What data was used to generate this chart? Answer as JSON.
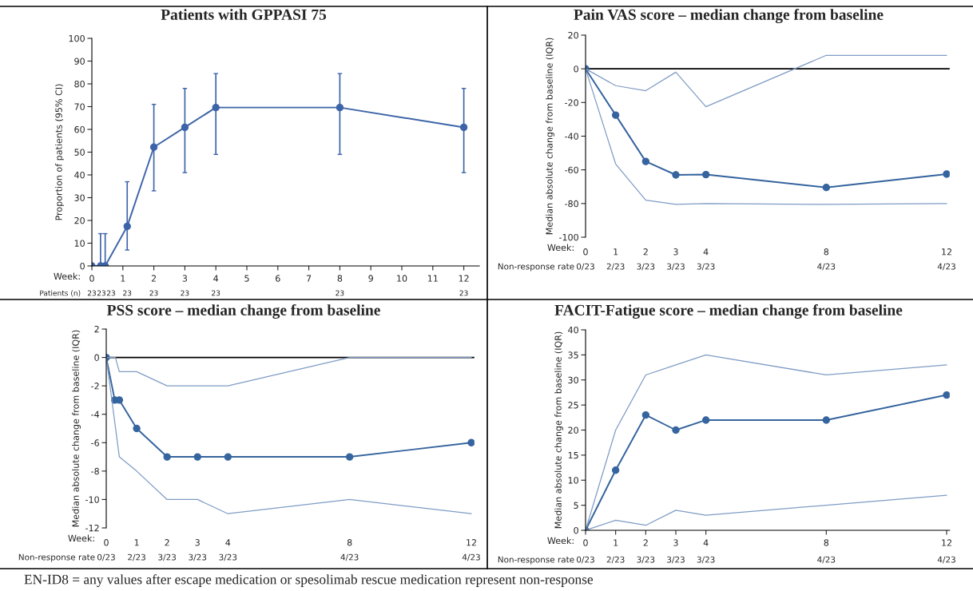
{
  "chart_data": [
    {
      "type": "line",
      "title": "Patients with GPPASI 75",
      "xlabel": "Week:",
      "ylabel": "Proportion of patients (95% CI)",
      "xlim": [
        0,
        12.5
      ],
      "xticks": [
        0,
        1,
        2,
        3,
        4,
        5,
        6,
        7,
        8,
        9,
        10,
        11,
        12
      ],
      "ylim": [
        0,
        100
      ],
      "yticks": [
        0,
        10,
        20,
        30,
        40,
        50,
        60,
        70,
        80,
        90,
        100
      ],
      "annotations": [
        "Patients (n)",
        "23",
        "23",
        "23",
        "23",
        "23",
        "23",
        "23",
        "23",
        "23"
      ],
      "series": [
        {
          "color": "#3d64a8",
          "marker": "circle",
          "x": [
            0,
            0.28,
            0.43,
            1.14,
            2,
            3,
            4,
            8,
            12
          ],
          "values": [
            0,
            0,
            0,
            17.4,
            52.2,
            60.9,
            69.6,
            69.6,
            60.9
          ],
          "errors": [
            null,
            [
              0,
              14.2
            ],
            [
              0,
              14.2
            ],
            [
              7,
              37
            ],
            [
              33,
              71
            ],
            [
              41,
              78
            ],
            [
              49,
              84.5
            ],
            [
              49,
              84.5
            ],
            [
              41,
              78
            ]
          ]
        }
      ],
      "grid": false
    },
    {
      "type": "line",
      "title": "Pain VAS score – median change from baseline",
      "xlabel": "Week:",
      "ylabel": "Median absolute change from baseline (IQR)",
      "xlim": [
        0,
        12.1
      ],
      "xticks": [
        0,
        1,
        2,
        3,
        4,
        8,
        12
      ],
      "ylim": [
        -100,
        20
      ],
      "yticks": [
        -100,
        -80,
        -60,
        -40,
        -20,
        0,
        20
      ],
      "annotations": [
        "Non-response rate",
        "0/23",
        "2/23",
        "3/23",
        "3/23",
        "3/23",
        "4/23",
        "4/23"
      ],
      "ref_lines": [
        {
          "axis": "y",
          "value": 0,
          "color": "#000000"
        }
      ],
      "series": [
        {
          "color": "#35649e",
          "marker": "circle",
          "x": [
            0,
            1,
            2,
            3,
            4,
            8,
            12
          ],
          "values": [
            0,
            -27.5,
            -55,
            -63,
            -62.8,
            -70.5,
            -62.5
          ]
        },
        {
          "color": "#7f9cc4",
          "marker": "none",
          "x": [
            0,
            1,
            2,
            3,
            4,
            8,
            12
          ],
          "values": [
            0,
            -10,
            -13,
            -2,
            -22.5,
            8,
            8
          ]
        },
        {
          "color": "#7f9cc4",
          "marker": "none",
          "x": [
            0,
            1,
            2,
            3,
            4,
            8,
            12
          ],
          "values": [
            0,
            -56.5,
            -78,
            -80.5,
            -80,
            -80.5,
            -80
          ]
        }
      ],
      "grid": false
    },
    {
      "type": "line",
      "title": "PSS score – median change from baseline",
      "xlabel": "Week:",
      "ylabel": "Median absolute change from baseline (IQR)",
      "xlim": [
        0,
        12.1
      ],
      "xticks": [
        0,
        1,
        2,
        3,
        4,
        8,
        12
      ],
      "ylim": [
        -12,
        2
      ],
      "yticks": [
        -12,
        -10,
        -8,
        -6,
        -4,
        -2,
        0,
        2
      ],
      "annotations": [
        "Non-response rate",
        "0/23",
        "2/23",
        "3/23",
        "3/23",
        "3/23",
        "4/23",
        "4/23"
      ],
      "ref_lines": [
        {
          "axis": "y",
          "value": 0,
          "color": "#000000"
        }
      ],
      "series": [
        {
          "color": "#35649e",
          "marker": "circle",
          "x": [
            0,
            0.28,
            0.43,
            1,
            2,
            3,
            4,
            8,
            12
          ],
          "values": [
            0,
            -3,
            -3,
            -5,
            -7,
            -7,
            -7,
            -7,
            -6
          ]
        },
        {
          "color": "#7f9cc4",
          "marker": "none",
          "x": [
            0,
            0.3,
            0.43,
            1,
            2,
            3,
            4,
            8,
            12
          ],
          "values": [
            0,
            0,
            -1,
            -1,
            -2,
            -2,
            -2,
            0,
            0
          ]
        },
        {
          "color": "#7f9cc4",
          "marker": "none",
          "x": [
            0,
            0.43,
            1,
            2,
            3,
            4,
            8,
            12
          ],
          "values": [
            0,
            -7,
            -8,
            -10,
            -10,
            -11,
            -10,
            -11
          ]
        }
      ],
      "grid": false
    },
    {
      "type": "line",
      "title": "FACIT-Fatigue score – median change from baseline",
      "xlabel": "Week:",
      "ylabel": "Median absolute change from baseline (IQR)",
      "xlim": [
        0,
        12.1
      ],
      "xticks": [
        0,
        1,
        2,
        3,
        4,
        8,
        12
      ],
      "ylim": [
        0,
        40
      ],
      "yticks": [
        0,
        5,
        10,
        15,
        20,
        25,
        30,
        35,
        40
      ],
      "series": [
        {
          "color": "#35649e",
          "marker": "circle",
          "x": [
            0,
            1,
            2,
            3,
            4,
            8,
            12
          ],
          "values": [
            0,
            12,
            23,
            20,
            22,
            22,
            27
          ]
        },
        {
          "color": "#7f9cc4",
          "marker": "none",
          "x": [
            0,
            1,
            2,
            3,
            4,
            8,
            12
          ],
          "values": [
            0,
            20,
            31,
            33,
            35,
            31,
            33
          ]
        },
        {
          "color": "#7f9cc4",
          "marker": "none",
          "x": [
            0,
            1,
            2,
            3,
            4,
            8,
            12
          ],
          "values": [
            0,
            2,
            1,
            4,
            3,
            5,
            7
          ]
        }
      ],
      "annotations": [
        "Non-response rate",
        "0/23",
        "2/23",
        "3/23",
        "3/23",
        "3/23",
        "4/23",
        "4/23",
        "EN-ID8 = any values after escape medication or spesolimab rescue medication represent non-response"
      ],
      "grid": false
    }
  ]
}
